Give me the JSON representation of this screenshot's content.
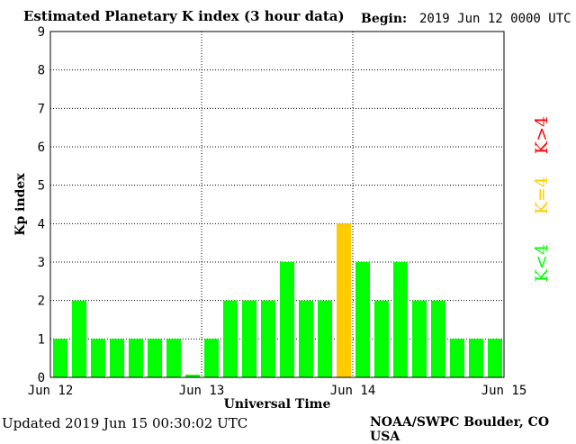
{
  "header": {
    "title": "Estimated Planetary K index (3 hour data)",
    "begin_label": "Begin:",
    "begin_date": "2019 Jun 12 0000 UTC"
  },
  "footer": {
    "updated": "Updated 2019 Jun 15 00:30:02 UTC",
    "credit": "NOAA/SWPC Boulder, CO USA"
  },
  "colors": {
    "below_storm": "#00ff00",
    "at_storm": "#ffcc00",
    "above_storm": "#ff0000",
    "grid": "#000000"
  },
  "legend": [
    {
      "label": "K<4",
      "color": "#00ff00"
    },
    {
      "label": "K=4",
      "color": "#ffcc00"
    },
    {
      "label": "K>4",
      "color": "#ff0000"
    }
  ],
  "chart_data": {
    "type": "bar",
    "title": "Estimated Planetary K index (3 hour data)",
    "xlabel": "Universal Time",
    "ylabel": "Kp index",
    "ylim": [
      0,
      9
    ],
    "yticks": [
      "0",
      "1",
      "2",
      "3",
      "4",
      "5",
      "6",
      "7",
      "8",
      "9"
    ],
    "xticks": [
      "Jun 12",
      "Jun 13",
      "Jun 14",
      "Jun 15"
    ],
    "grid": "dotted at Jun 13, Jun 14 and each Kp level",
    "values": [
      1,
      2,
      1,
      1,
      1,
      1,
      1,
      0.07,
      1,
      2,
      2,
      2,
      3,
      2,
      2,
      4,
      3,
      2,
      3,
      2,
      2,
      1,
      1,
      1
    ]
  }
}
